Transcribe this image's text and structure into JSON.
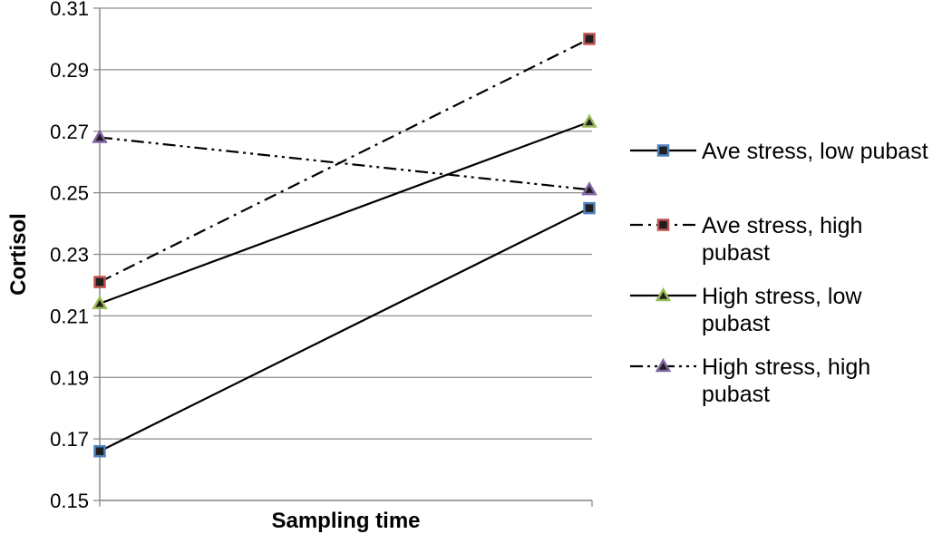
{
  "chart_data": {
    "type": "line",
    "title": "",
    "xlabel": "Sampling time",
    "ylabel": "Cortisol",
    "categories": [
      "",
      ""
    ],
    "ylim": [
      0.15,
      0.31
    ],
    "yticks": [
      "0.15",
      "0.17",
      "0.19",
      "0.21",
      "0.23",
      "0.25",
      "0.27",
      "0.29",
      "0.31"
    ],
    "grid": true,
    "legend_position": "right",
    "series": [
      {
        "name": "Ave stress, low pubast",
        "legend_lines": [
          "Ave stress, low pubast"
        ],
        "values": [
          0.166,
          0.245
        ],
        "dash": "solid",
        "marker": "square",
        "marker_fill": "#1f1f1f",
        "marker_stroke": "#4f81bd"
      },
      {
        "name": "Ave stress, high pubast",
        "legend_lines": [
          "Ave stress, high",
          "pubast"
        ],
        "values": [
          0.221,
          0.3
        ],
        "dash": "dashdot",
        "marker": "square",
        "marker_fill": "#1f1f1f",
        "marker_stroke": "#c0504d"
      },
      {
        "name": "High stress, low pubast",
        "legend_lines": [
          "High stress, low",
          "pubast"
        ],
        "values": [
          0.214,
          0.273
        ],
        "dash": "solid",
        "marker": "triangle",
        "marker_fill": "#1f1f1f",
        "marker_stroke": "#9bbb59"
      },
      {
        "name": "High stress, high pubast",
        "legend_lines": [
          "High stress, high",
          "pubast"
        ],
        "values": [
          0.268,
          0.251
        ],
        "dash": "dashdotdot",
        "marker": "triangle",
        "marker_fill": "#1f1f1f",
        "marker_stroke": "#8064a2"
      }
    ]
  }
}
